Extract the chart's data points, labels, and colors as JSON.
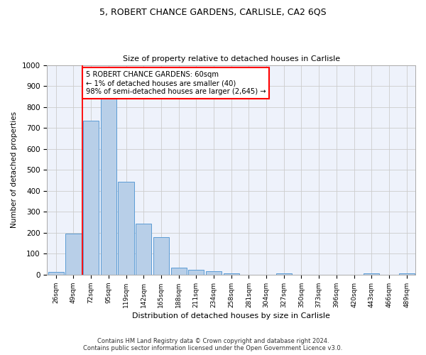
{
  "title": "5, ROBERT CHANCE GARDENS, CARLISLE, CA2 6QS",
  "subtitle": "Size of property relative to detached houses in Carlisle",
  "xlabel": "Distribution of detached houses by size in Carlisle",
  "ylabel": "Number of detached properties",
  "categories": [
    "26sqm",
    "49sqm",
    "72sqm",
    "95sqm",
    "119sqm",
    "142sqm",
    "165sqm",
    "188sqm",
    "211sqm",
    "234sqm",
    "258sqm",
    "281sqm",
    "304sqm",
    "327sqm",
    "350sqm",
    "373sqm",
    "396sqm",
    "420sqm",
    "443sqm",
    "466sqm",
    "489sqm"
  ],
  "values": [
    15,
    195,
    735,
    840,
    445,
    242,
    180,
    33,
    22,
    17,
    8,
    0,
    0,
    8,
    0,
    0,
    0,
    0,
    8,
    0,
    8
  ],
  "bar_color": "#b8cfe8",
  "bar_edge_color": "#5b9bd5",
  "annotation_text": "5 ROBERT CHANCE GARDENS: 60sqm\n← 1% of detached houses are smaller (40)\n98% of semi-detached houses are larger (2,645) →",
  "annotation_box_color": "white",
  "annotation_box_edge_color": "red",
  "ylim": [
    0,
    1000
  ],
  "yticks": [
    0,
    100,
    200,
    300,
    400,
    500,
    600,
    700,
    800,
    900,
    1000
  ],
  "footer_line1": "Contains HM Land Registry data © Crown copyright and database right 2024.",
  "footer_line2": "Contains public sector information licensed under the Open Government Licence v3.0.",
  "grid_color": "#cccccc",
  "bg_color": "#eef2fb"
}
